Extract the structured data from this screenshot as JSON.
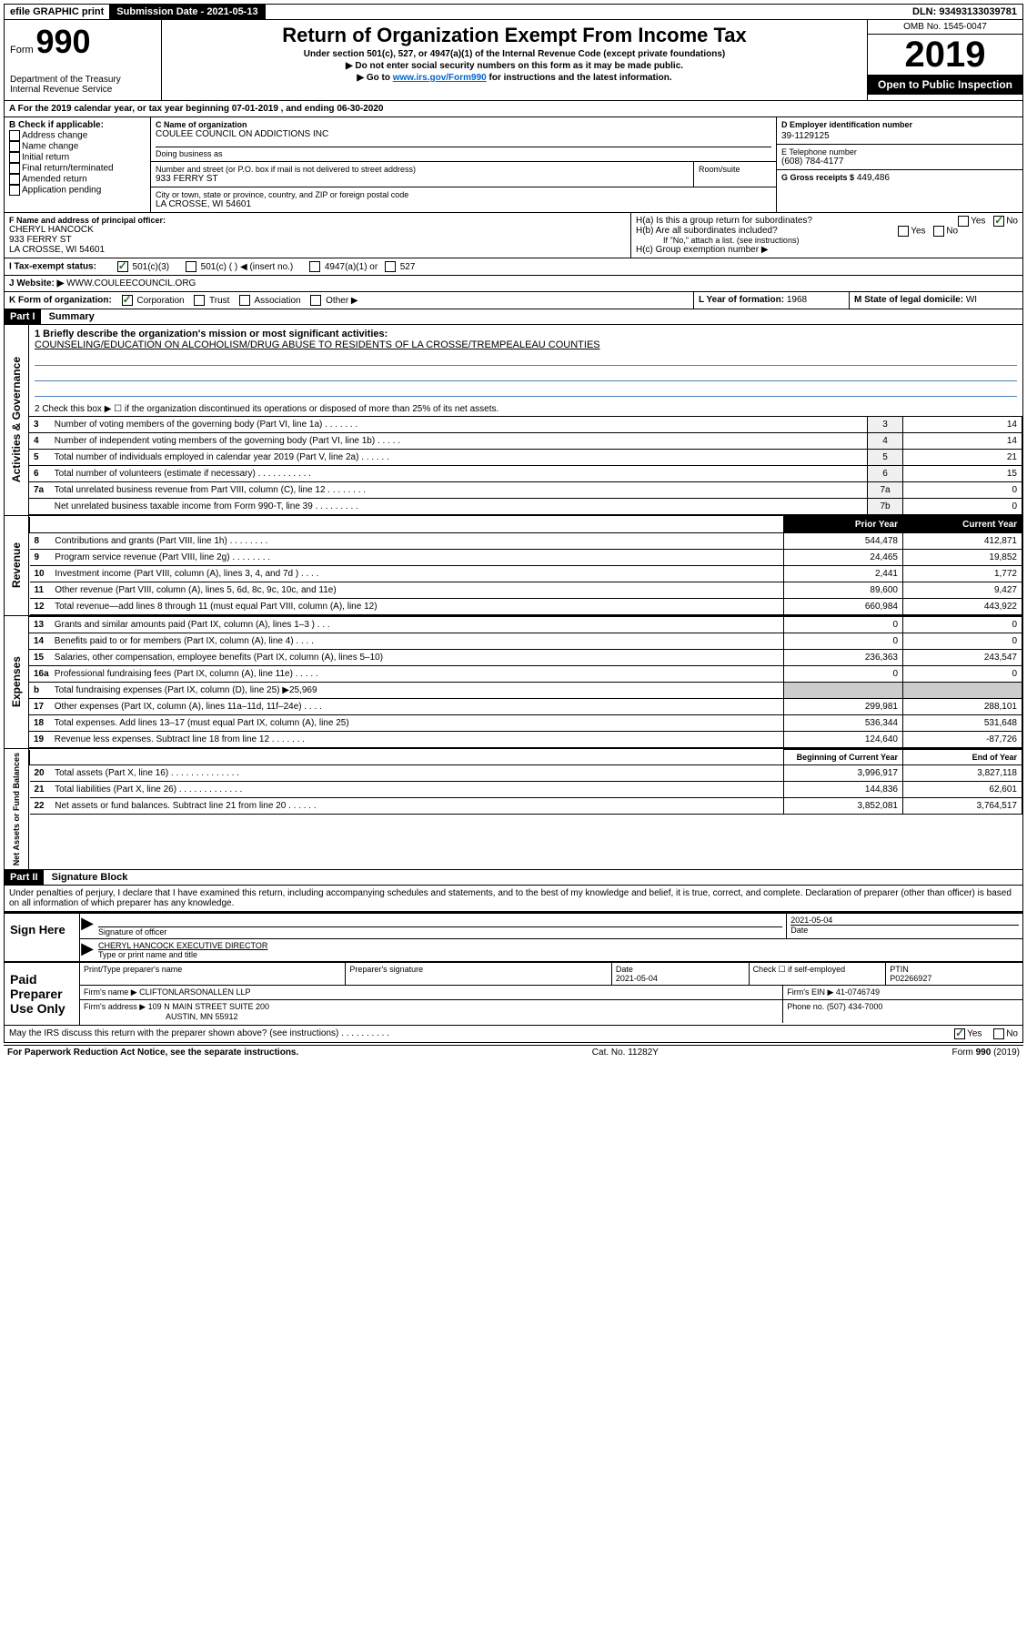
{
  "topbar": {
    "efile": "efile GRAPHIC print",
    "submission": "Submission Date - 2021-05-13",
    "dln": "DLN: 93493133039781"
  },
  "header": {
    "form_label": "Form",
    "form_number": "990",
    "dept": "Department of the Treasury\nInternal Revenue Service",
    "title": "Return of Organization Exempt From Income Tax",
    "subtitle1": "Under section 501(c), 527, or 4947(a)(1) of the Internal Revenue Code (except private foundations)",
    "subtitle2": "▶ Do not enter social security numbers on this form as it may be made public.",
    "subtitle3_pre": "▶ Go to ",
    "subtitle3_link": "www.irs.gov/Form990",
    "subtitle3_post": " for instructions and the latest information.",
    "omb": "OMB No. 1545-0047",
    "year": "2019",
    "inspection": "Open to Public Inspection"
  },
  "section_a": {
    "line": "A For the 2019 calendar year, or tax year beginning 07-01-2019     , and ending 06-30-2020"
  },
  "block_b": {
    "title": "B Check if applicable:",
    "opts": [
      "Address change",
      "Name change",
      "Initial return",
      "Final return/terminated",
      "Amended return",
      "Application pending"
    ]
  },
  "block_c": {
    "label": "C Name of organization",
    "name": "COULEE COUNCIL ON ADDICTIONS INC",
    "dba_label": "Doing business as",
    "dba": "",
    "street_label": "Number and street (or P.O. box if mail is not delivered to street address)",
    "room_label": "Room/suite",
    "street": "933 FERRY ST",
    "city_label": "City or town, state or province, country, and ZIP or foreign postal code",
    "city": "LA CROSSE, WI  54601"
  },
  "block_d": {
    "label": "D Employer identification number",
    "value": "39-1129125"
  },
  "block_e": {
    "label": "E Telephone number",
    "value": "(608) 784-4177"
  },
  "block_g": {
    "label": "G Gross receipts $",
    "value": "449,486"
  },
  "block_f": {
    "label": "F Name and address of principal officer:",
    "name": "CHERYL HANCOCK",
    "street": "933 FERRY ST",
    "city": "LA CROSSE, WI  54601"
  },
  "block_h": {
    "ha": "H(a)  Is this a group return for subordinates?",
    "hb": "H(b)  Are all subordinates included?",
    "hb_note": "If \"No,\" attach a list. (see instructions)",
    "hc": "H(c)  Group exemption number ▶",
    "yes": "Yes",
    "no": "No"
  },
  "block_i": {
    "label": "I Tax-exempt status:",
    "opts": [
      "501(c)(3)",
      "501(c) (  ) ◀ (insert no.)",
      "4947(a)(1) or",
      "527"
    ]
  },
  "block_j": {
    "label": "J  Website: ▶",
    "value": "WWW.COULEECOUNCIL.ORG"
  },
  "block_k": {
    "label": "K Form of organization:",
    "opts": [
      "Corporation",
      "Trust",
      "Association",
      "Other ▶"
    ]
  },
  "block_l": {
    "label": "L Year of formation:",
    "value": "1968"
  },
  "block_m": {
    "label": "M State of legal domicile:",
    "value": "WI"
  },
  "part1": {
    "header": "Part I",
    "title": "Summary",
    "q1": "1  Briefly describe the organization's mission or most significant activities:",
    "mission": "COUNSELING/EDUCATION ON ALCOHOLISM/DRUG ABUSE TO RESIDENTS OF LA CROSSE/TREMPEALEAU COUNTIES",
    "q2": "2  Check this box ▶ ☐  if the organization discontinued its operations or disposed of more than 25% of its net assets.",
    "sections": {
      "governance": "Activities & Governance",
      "revenue": "Revenue",
      "expenses": "Expenses",
      "netassets": "Net Assets or Fund Balances"
    },
    "col_prior": "Prior Year",
    "col_current": "Current Year",
    "col_begin": "Beginning of Current Year",
    "col_end": "End of Year",
    "rows_gov": [
      {
        "n": "3",
        "label": "Number of voting members of the governing body (Part VI, line 1a)  .    .    .    .    .    .    .",
        "box": "3",
        "val": "14"
      },
      {
        "n": "4",
        "label": "Number of independent voting members of the governing body (Part VI, line 1b)  .    .    .    .    .",
        "box": "4",
        "val": "14"
      },
      {
        "n": "5",
        "label": "Total number of individuals employed in calendar year 2019 (Part V, line 2a)  .    .    .    .    .    .",
        "box": "5",
        "val": "21"
      },
      {
        "n": "6",
        "label": "Total number of volunteers (estimate if necessary)  .    .    .    .    .    .    .    .    .    .    .",
        "box": "6",
        "val": "15"
      },
      {
        "n": "7a",
        "label": "Total unrelated business revenue from Part VIII, column (C), line 12  .    .    .    .    .    .    .    .",
        "box": "7a",
        "val": "0"
      },
      {
        "n": "",
        "label": "Net unrelated business taxable income from Form 990-T, line 39  .    .    .    .    .    .    .    .    .",
        "box": "7b",
        "val": "0"
      }
    ],
    "rows_rev": [
      {
        "n": "8",
        "label": "Contributions and grants (Part VIII, line 1h)  .    .    .    .    .    .    .    .",
        "prior": "544,478",
        "cur": "412,871"
      },
      {
        "n": "9",
        "label": "Program service revenue (Part VIII, line 2g)  .    .    .    .    .    .    .    .",
        "prior": "24,465",
        "cur": "19,852"
      },
      {
        "n": "10",
        "label": "Investment income (Part VIII, column (A), lines 3, 4, and 7d )  .    .    .    .",
        "prior": "2,441",
        "cur": "1,772"
      },
      {
        "n": "11",
        "label": "Other revenue (Part VIII, column (A), lines 5, 6d, 8c, 9c, 10c, and 11e)",
        "prior": "89,600",
        "cur": "9,427"
      },
      {
        "n": "12",
        "label": "Total revenue—add lines 8 through 11 (must equal Part VIII, column (A), line 12)",
        "prior": "660,984",
        "cur": "443,922"
      }
    ],
    "rows_exp": [
      {
        "n": "13",
        "label": "Grants and similar amounts paid (Part IX, column (A), lines 1–3 )  .    .    .",
        "prior": "0",
        "cur": "0"
      },
      {
        "n": "14",
        "label": "Benefits paid to or for members (Part IX, column (A), line 4)  .    .    .    .",
        "prior": "0",
        "cur": "0"
      },
      {
        "n": "15",
        "label": "Salaries, other compensation, employee benefits (Part IX, column (A), lines 5–10)",
        "prior": "236,363",
        "cur": "243,547"
      },
      {
        "n": "16a",
        "label": "Professional fundraising fees (Part IX, column (A), line 11e)  .    .    .    .    .",
        "prior": "0",
        "cur": "0"
      },
      {
        "n": "b",
        "label": "Total fundraising expenses (Part IX, column (D), line 25) ▶25,969",
        "prior": "",
        "cur": ""
      },
      {
        "n": "17",
        "label": "Other expenses (Part IX, column (A), lines 11a–11d, 11f–24e)  .    .    .    .",
        "prior": "299,981",
        "cur": "288,101"
      },
      {
        "n": "18",
        "label": "Total expenses. Add lines 13–17 (must equal Part IX, column (A), line 25)",
        "prior": "536,344",
        "cur": "531,648"
      },
      {
        "n": "19",
        "label": "Revenue less expenses. Subtract line 18 from line 12  .    .    .    .    .    .    .",
        "prior": "124,640",
        "cur": "-87,726"
      }
    ],
    "rows_net": [
      {
        "n": "20",
        "label": "Total assets (Part X, line 16)  .    .    .    .    .    .    .    .    .    .    .    .    .    .",
        "prior": "3,996,917",
        "cur": "3,827,118"
      },
      {
        "n": "21",
        "label": "Total liabilities (Part X, line 26)  .    .    .    .    .    .    .    .    .    .    .    .    .",
        "prior": "144,836",
        "cur": "62,601"
      },
      {
        "n": "22",
        "label": "Net assets or fund balances. Subtract line 21 from line 20  .    .    .    .    .    .",
        "prior": "3,852,081",
        "cur": "3,764,517"
      }
    ]
  },
  "part2": {
    "header": "Part II",
    "title": "Signature Block",
    "declaration": "Under penalties of perjury, I declare that I have examined this return, including accompanying schedules and statements, and to the best of my knowledge and belief, it is true, correct, and complete. Declaration of preparer (other than officer) is based on all information of which preparer has any knowledge."
  },
  "sign": {
    "here": "Sign Here",
    "sig_officer": "Signature of officer",
    "date": "2021-05-04",
    "date_label": "Date",
    "typed": "CHERYL HANCOCK  EXECUTIVE DIRECTOR",
    "typed_label": "Type or print name and title"
  },
  "paid": {
    "here": "Paid Preparer Use Only",
    "h_name": "Print/Type preparer's name",
    "h_sig": "Preparer's signature",
    "h_date": "Date",
    "date_val": "2021-05-04",
    "h_check": "Check ☐ if self-employed",
    "h_ptin": "PTIN",
    "ptin_val": "P02266927",
    "firm_name_label": "Firm's name      ▶",
    "firm_name": "CLIFTONLARSONALLEN LLP",
    "firm_ein_label": "Firm's EIN ▶",
    "firm_ein": "41-0746749",
    "firm_addr_label": "Firm's address ▶",
    "firm_addr": "109 N MAIN STREET SUITE 200",
    "firm_city": "AUSTIN, MN  55912",
    "firm_phone_label": "Phone no.",
    "firm_phone": "(507) 434-7000"
  },
  "bottom": {
    "discuss": "May the IRS discuss this return with the preparer shown above? (see instructions)  .    .    .    .    .    .    .    .    .    .",
    "yes": "Yes",
    "no": "No",
    "paperwork": "For Paperwork Reduction Act Notice, see the separate instructions.",
    "cat": "Cat. No. 11282Y",
    "form": "Form 990 (2019)"
  }
}
